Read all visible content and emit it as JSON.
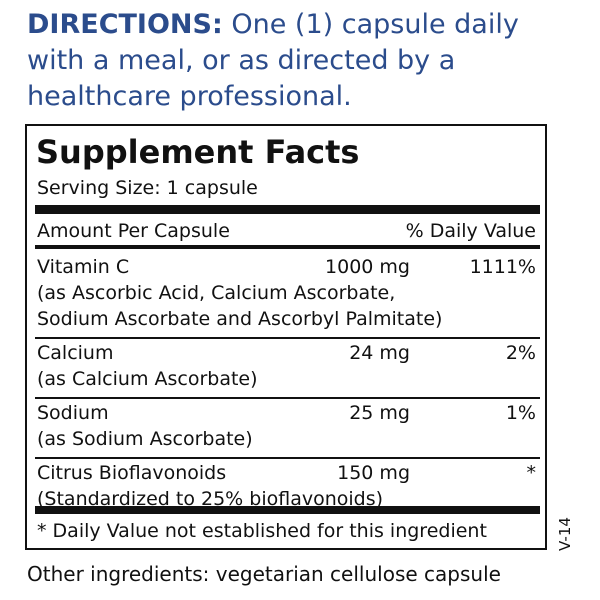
{
  "directions": {
    "label": "DIRECTIONS:",
    "lines": [
      "One (1) capsule daily",
      "with a meal, or as directed by a",
      "healthcare professional."
    ]
  },
  "facts": {
    "title": "Supplement Facts",
    "serving_size": "Serving Size: 1 capsule",
    "header": {
      "amount": "Amount Per Capsule",
      "dv": "% Daily Value"
    },
    "rows": [
      {
        "name": "Vitamin C",
        "amount": "1000 mg",
        "dv": "1111%",
        "note": [
          "(as Ascorbic Acid, Calcium Ascorbate,",
          "Sodium Ascorbate and Ascorbyl Palmitate)"
        ]
      },
      {
        "name": "Calcium",
        "amount": "24 mg",
        "dv": "2%",
        "note": [
          "(as Calcium Ascorbate)"
        ]
      },
      {
        "name": "Sodium",
        "amount": "25 mg",
        "dv": "1%",
        "note": [
          "(as Sodium Ascorbate)"
        ]
      },
      {
        "name": "Citrus Bioflavonoids",
        "amount": "150 mg",
        "dv": "*",
        "note": [
          "(Standardized to 25% bioflavonoids)"
        ]
      }
    ],
    "footnote": "* Daily Value not established for this ingredient"
  },
  "code": "V-14",
  "other_ingredients": "Other ingredients: vegetarian cellulose capsule"
}
